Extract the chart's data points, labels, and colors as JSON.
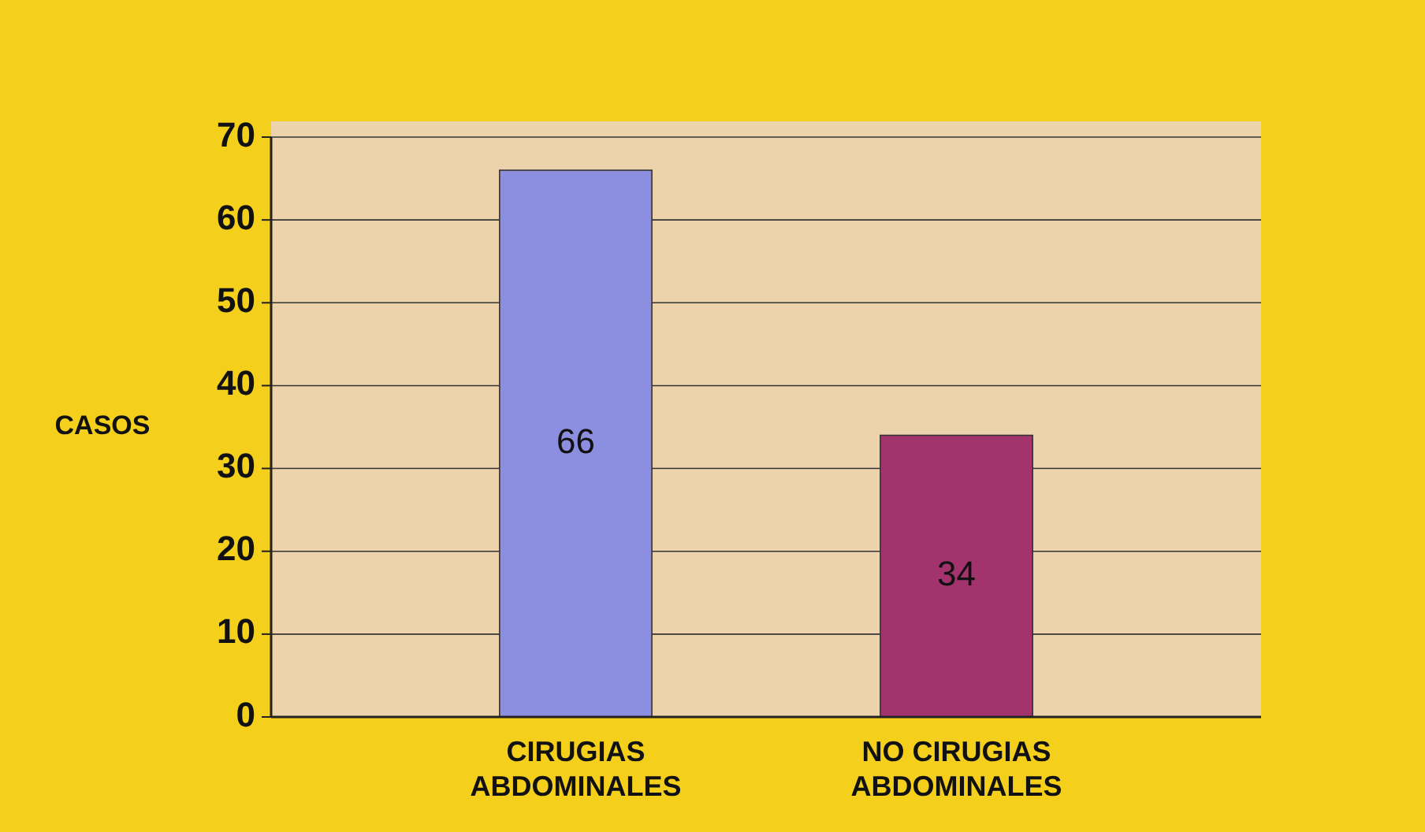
{
  "chart_data": {
    "type": "bar",
    "ylabel": "CASOS",
    "categories": [
      "CIRUGIAS ABDOMINALES",
      "NO CIRUGIAS ABDOMINALES"
    ],
    "values": [
      66,
      34
    ],
    "colors": [
      "#8c8fe0",
      "#a3336d"
    ],
    "ylim": [
      0,
      70
    ],
    "yticks": [
      0,
      10,
      20,
      30,
      40,
      50,
      60,
      70
    ],
    "grid": "y",
    "data_labels": true
  }
}
